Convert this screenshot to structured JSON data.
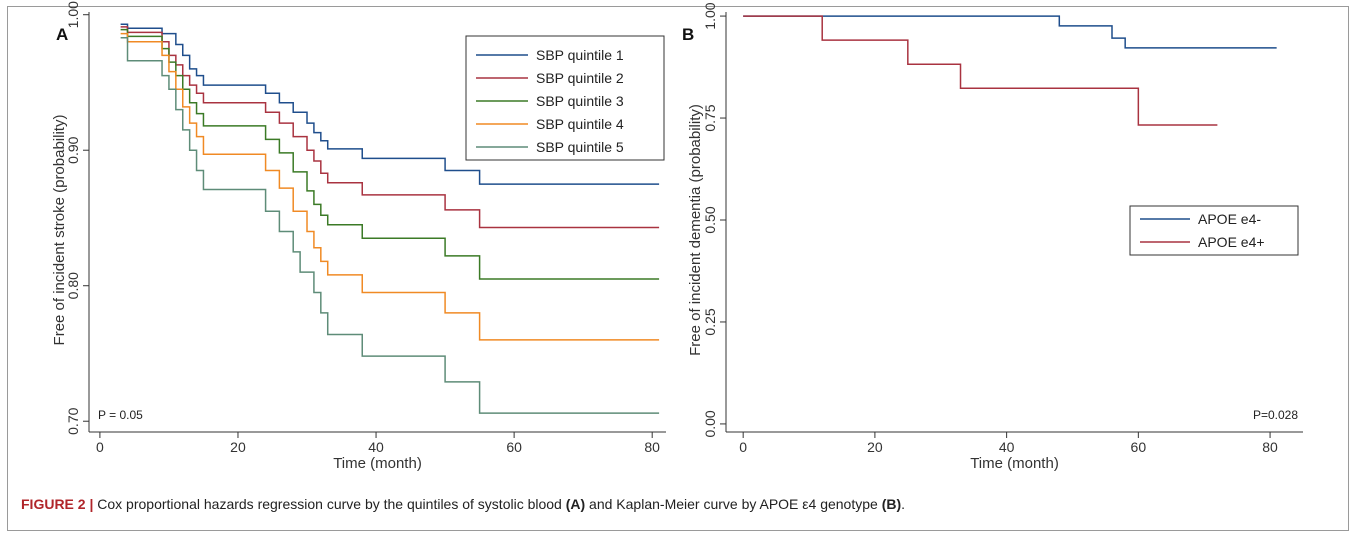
{
  "figure": {
    "caption_label": "FIGURE 2 |",
    "caption_text_1": " Cox proportional hazards regression curve by the quintiles of systolic blood ",
    "caption_ref_a": "(A)",
    "caption_text_2": " and Kaplan-Meier curve by APOE ε4 genotype ",
    "caption_ref_b": "(B)",
    "caption_text_3": "."
  },
  "chart_data": [
    {
      "type": "line",
      "step": true,
      "panel_label": "A",
      "xlabel": "Time (month)",
      "ylabel": "Free of incident stroke (probability)",
      "xlim": [
        -1,
        82
      ],
      "ylim": [
        0.695,
        1.002
      ],
      "xticks": [
        0,
        20,
        40,
        60,
        80
      ],
      "yticks": [
        0.7,
        0.8,
        0.9,
        1.0
      ],
      "ytick_labels": [
        "0.70",
        "0.80",
        "0.90",
        "1.00"
      ],
      "annotation": "P = 0.05",
      "legend_position": "top-right",
      "grid": false,
      "series": [
        {
          "name": "SBP quintile 1",
          "color": "#1f4e8c",
          "points": [
            [
              3,
              0.993
            ],
            [
              4,
              0.99
            ],
            [
              9,
              0.986
            ],
            [
              11,
              0.978
            ],
            [
              12,
              0.97
            ],
            [
              13,
              0.96
            ],
            [
              14,
              0.955
            ],
            [
              15,
              0.948
            ],
            [
              24,
              0.942
            ],
            [
              26,
              0.935
            ],
            [
              28,
              0.928
            ],
            [
              30,
              0.92
            ],
            [
              31,
              0.913
            ],
            [
              32,
              0.907
            ],
            [
              33,
              0.901
            ],
            [
              38,
              0.894
            ],
            [
              50,
              0.885
            ],
            [
              55,
              0.875
            ],
            [
              81,
              0.875
            ]
          ]
        },
        {
          "name": "SBP quintile 2",
          "color": "#a93340",
          "points": [
            [
              3,
              0.991
            ],
            [
              4,
              0.987
            ],
            [
              9,
              0.98
            ],
            [
              10,
              0.97
            ],
            [
              11,
              0.963
            ],
            [
              12,
              0.955
            ],
            [
              13,
              0.948
            ],
            [
              14,
              0.942
            ],
            [
              15,
              0.935
            ],
            [
              24,
              0.928
            ],
            [
              26,
              0.92
            ],
            [
              28,
              0.91
            ],
            [
              30,
              0.9
            ],
            [
              31,
              0.892
            ],
            [
              32,
              0.883
            ],
            [
              33,
              0.876
            ],
            [
              38,
              0.867
            ],
            [
              50,
              0.856
            ],
            [
              55,
              0.843
            ],
            [
              81,
              0.843
            ]
          ]
        },
        {
          "name": "SBP quintile 3",
          "color": "#3b7a26",
          "points": [
            [
              3,
              0.989
            ],
            [
              4,
              0.984
            ],
            [
              9,
              0.975
            ],
            [
              10,
              0.965
            ],
            [
              11,
              0.955
            ],
            [
              12,
              0.945
            ],
            [
              13,
              0.935
            ],
            [
              14,
              0.927
            ],
            [
              15,
              0.918
            ],
            [
              24,
              0.908
            ],
            [
              26,
              0.898
            ],
            [
              28,
              0.884
            ],
            [
              30,
              0.87
            ],
            [
              31,
              0.86
            ],
            [
              32,
              0.852
            ],
            [
              33,
              0.845
            ],
            [
              38,
              0.835
            ],
            [
              50,
              0.822
            ],
            [
              55,
              0.805
            ],
            [
              81,
              0.805
            ]
          ]
        },
        {
          "name": "SBP quintile 4",
          "color": "#f08a24",
          "points": [
            [
              3,
              0.986
            ],
            [
              4,
              0.98
            ],
            [
              9,
              0.97
            ],
            [
              10,
              0.958
            ],
            [
              11,
              0.945
            ],
            [
              12,
              0.932
            ],
            [
              13,
              0.92
            ],
            [
              14,
              0.91
            ],
            [
              15,
              0.897
            ],
            [
              24,
              0.885
            ],
            [
              26,
              0.872
            ],
            [
              28,
              0.855
            ],
            [
              30,
              0.84
            ],
            [
              31,
              0.828
            ],
            [
              32,
              0.818
            ],
            [
              33,
              0.808
            ],
            [
              38,
              0.795
            ],
            [
              50,
              0.78
            ],
            [
              55,
              0.76
            ],
            [
              81,
              0.76
            ]
          ]
        },
        {
          "name": "SBP quintile 5",
          "color": "#5e8c78",
          "points": [
            [
              3,
              0.983
            ],
            [
              4,
              0.966
            ],
            [
              9,
              0.955
            ],
            [
              10,
              0.945
            ],
            [
              11,
              0.93
            ],
            [
              12,
              0.915
            ],
            [
              13,
              0.9
            ],
            [
              14,
              0.885
            ],
            [
              15,
              0.871
            ],
            [
              24,
              0.855
            ],
            [
              26,
              0.84
            ],
            [
              28,
              0.825
            ],
            [
              29,
              0.81
            ],
            [
              31,
              0.795
            ],
            [
              32,
              0.78
            ],
            [
              33,
              0.764
            ],
            [
              38,
              0.748
            ],
            [
              50,
              0.729
            ],
            [
              55,
              0.706
            ],
            [
              81,
              0.706
            ]
          ]
        }
      ]
    },
    {
      "type": "line",
      "step": true,
      "panel_label": "B",
      "xlabel": "Time (month)",
      "ylabel": "Free of incident dementia (probability)",
      "xlim": [
        -2,
        85
      ],
      "ylim": [
        -0.01,
        1.01
      ],
      "xticks": [
        0,
        20,
        40,
        60,
        80
      ],
      "yticks": [
        0.0,
        0.25,
        0.5,
        0.75,
        1.0
      ],
      "ytick_labels": [
        "0.00",
        "0.25",
        "0.50",
        "0.75",
        "1.00"
      ],
      "annotation": "P=0.028",
      "legend_position": "middle-right",
      "grid": false,
      "series": [
        {
          "name": "APOE e4-",
          "color": "#1f4e8c",
          "points": [
            [
              0,
              1.0
            ],
            [
              48,
              0.976
            ],
            [
              56,
              0.946
            ],
            [
              58,
              0.922
            ],
            [
              81,
              0.922
            ]
          ]
        },
        {
          "name": "APOE e4+",
          "color": "#a93340",
          "points": [
            [
              0,
              1.0
            ],
            [
              12,
              0.941
            ],
            [
              25,
              0.882
            ],
            [
              33,
              0.823
            ],
            [
              60,
              0.733
            ],
            [
              72,
              0.733
            ]
          ]
        }
      ]
    }
  ]
}
